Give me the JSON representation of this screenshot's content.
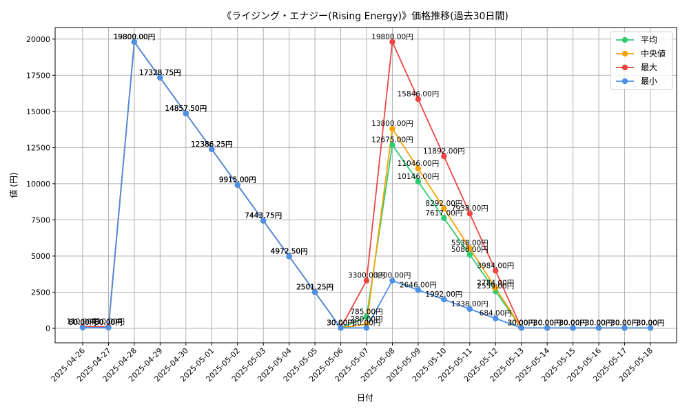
{
  "chart_data": {
    "type": "line",
    "title": "《ライジング・エナジー(Rising Energy)》価格推移(過去30日間)",
    "xlabel": "日付",
    "ylabel": "値 (円)",
    "ylim": [
      -1000,
      20800
    ],
    "yticks": [
      0,
      2500,
      5000,
      7500,
      10000,
      12500,
      15000,
      17500,
      20000
    ],
    "grid": true,
    "legend_position": "top-right",
    "categories": [
      "2025-04-26",
      "2025-04-27",
      "2025-04-28",
      "2025-04-29",
      "2025-04-30",
      "2025-05-01",
      "2025-05-02",
      "2025-05-03",
      "2025-05-04",
      "2025-05-05",
      "2025-05-06",
      "2025-05-07",
      "2025-05-08",
      "2025-05-09",
      "2025-05-10",
      "2025-05-11",
      "2025-05-12",
      "2025-05-13",
      "2025-05-14",
      "2025-05-15",
      "2025-05-16",
      "2025-05-17",
      "2025-05-18"
    ],
    "series": [
      {
        "name": "平均",
        "color": "#2ecc71",
        "values": [
          80,
          80,
          19800,
          17328.75,
          14857.5,
          12386.25,
          9915,
          7443.75,
          4972.5,
          2501.25,
          30,
          785,
          12675,
          10146,
          7617,
          5088,
          2559,
          30,
          30,
          30,
          30,
          30,
          30
        ],
        "labels": [
          "80.00円",
          "80.00円",
          "19800.00円",
          "17328.75円",
          "14857.50円",
          "12386.25円",
          "9915.00円",
          "7443.75円",
          "4972.50円",
          "2501.25円",
          "30.00円",
          "785.00円",
          "12675.00円",
          "10146.00円",
          "7617.00円",
          "5088.00円",
          "2559.00円",
          "30.00円",
          "30.00円",
          "30.00円",
          "30.00円",
          "30.00円",
          "30.00円"
        ]
      },
      {
        "name": "中央値",
        "color": "#f5a300",
        "values": [
          80,
          80,
          19800,
          17328.75,
          14857.5,
          12386.25,
          9915,
          7443.75,
          4972.5,
          2501.25,
          30,
          280,
          13800,
          11046,
          8292,
          5538,
          2784,
          30,
          30,
          30,
          30,
          30,
          30
        ],
        "labels": [
          "80.00円",
          "80.00円",
          "19800.00円",
          "17328.75円",
          "14857.50円",
          "12386.25円",
          "9915.00円",
          "7443.75円",
          "4972.50円",
          "2501.25円",
          "30.00円",
          "280.00円",
          "13800.00円",
          "11046.00円",
          "8292.00円",
          "5538.00円",
          "2784.00円",
          "30.00円",
          "30.00円",
          "30.00円",
          "30.00円",
          "30.00円",
          "30.00円"
        ]
      },
      {
        "name": "最大",
        "color": "#ef4444",
        "values": [
          110,
          110,
          19800,
          17328.75,
          14857.5,
          12386.25,
          9915,
          7443.75,
          4972.5,
          2501.25,
          30,
          3300,
          19800,
          15846,
          11892,
          7938,
          3984,
          30,
          30,
          30,
          30,
          30,
          30
        ],
        "labels": [
          "110.00円",
          "110.00円",
          "19800.00円",
          "17328.75円",
          "14857.50円",
          "12386.25円",
          "9915.00円",
          "7443.75円",
          "4972.50円",
          "2501.25円",
          "30.00円",
          "3300.00円",
          "19800.00円",
          "15846.00円",
          "11892.00円",
          "7938.00円",
          "3984.00円",
          "30.00円",
          "30.00円",
          "30.00円",
          "30.00円",
          "30.00円",
          "30.00円"
        ]
      },
      {
        "name": "最小",
        "color": "#4a90e8",
        "values": [
          50,
          50,
          19800,
          17328.75,
          14857.5,
          12386.25,
          9915,
          7443.75,
          4972.5,
          2501.25,
          30,
          30,
          3300,
          2646,
          1992,
          1338,
          684,
          30,
          30,
          30,
          30,
          30,
          30
        ],
        "labels": [
          "50.00円",
          "50.00円",
          "19800.00円",
          "17328.75円",
          "14857.50円",
          "12386.25円",
          "9915.00円",
          "7443.75円",
          "4972.50円",
          "2501.25円",
          "30.00円",
          "30.00円",
          "3300.00円",
          "2646.00円",
          "1992.00円",
          "1338.00円",
          "684.00円",
          "30.00円",
          "30.00円",
          "30.00円",
          "30.00円",
          "30.00円",
          "30.00円"
        ]
      }
    ]
  }
}
